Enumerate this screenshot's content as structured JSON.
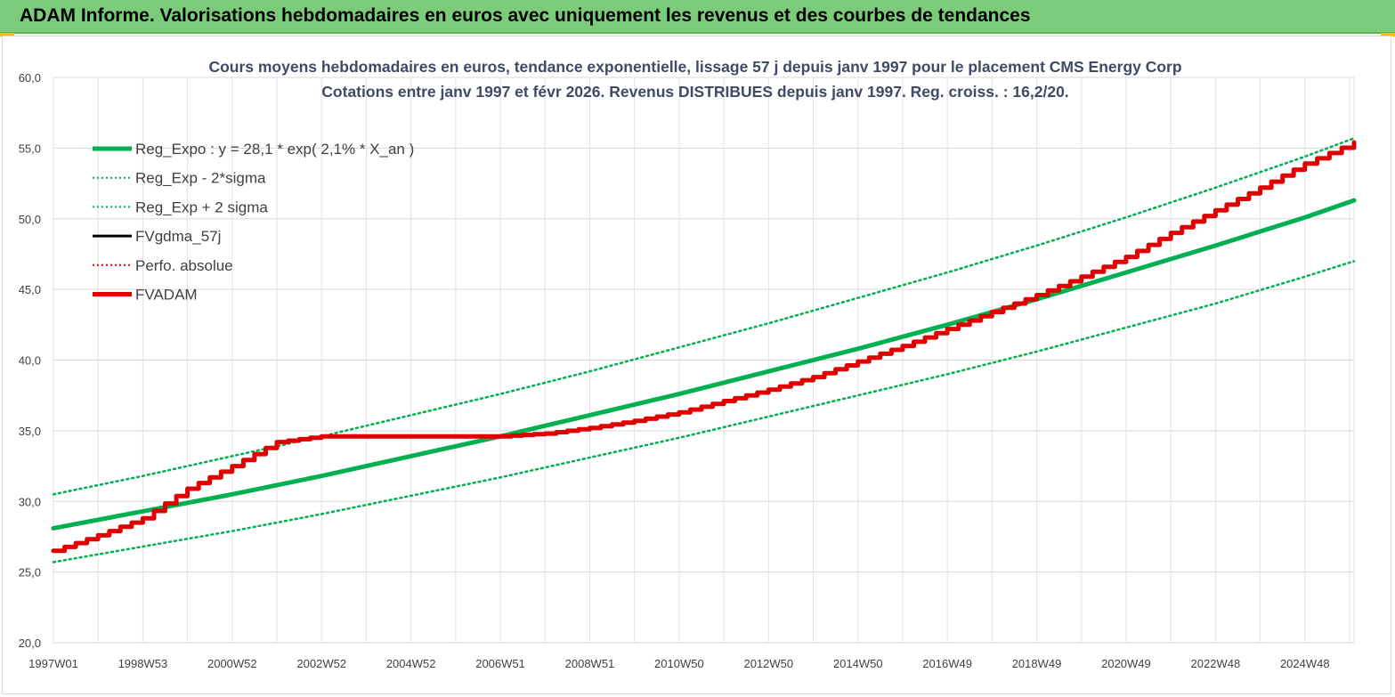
{
  "banner": {
    "title": "ADAM Informe. Valorisations hebdomadaires en euros avec uniquement les revenus et des courbes de tendances"
  },
  "chart_data": {
    "type": "line",
    "title": "Cours moyens hebdomadaires en euros, tendance exponentielle, lissage 57 j depuis janv 1997 pour le placement CMS Energy Corp",
    "subtitle": "Cotations entre janv 1997 et févr 2026. Revenus DISTRIBUES depuis janv 1997. Reg. croiss. : 16,2/20.",
    "xlabel": "",
    "ylabel": "",
    "x_tick_labels": [
      "1997W01",
      "1998W53",
      "2000W52",
      "2002W52",
      "2004W52",
      "2006W51",
      "2008W51",
      "2010W50",
      "2012W50",
      "2014W50",
      "2016W49",
      "2018W49",
      "2020W49",
      "2022W48",
      "2024W48"
    ],
    "y_ticks": [
      20,
      25,
      30,
      35,
      40,
      45,
      50,
      55,
      60
    ],
    "y_tick_labels": [
      "20,0",
      "25,0",
      "30,0",
      "35,0",
      "40,0",
      "45,0",
      "50,0",
      "55,0",
      "60,0"
    ],
    "ylim": [
      20,
      60
    ],
    "xlim": [
      1997.0,
      2026.1
    ],
    "grid": true,
    "legend_position": "top-left",
    "series": [
      {
        "name": "Reg_Expo : y = 28,1 * exp( 2,1% *  X_an )",
        "color": "#00b050",
        "style": "solid-thick",
        "x": [
          1997,
          1999,
          2001,
          2003,
          2005,
          2007,
          2009,
          2011,
          2013,
          2015,
          2017,
          2019,
          2021,
          2023,
          2025,
          2026.1
        ],
        "y": [
          28.1,
          29.3,
          30.5,
          31.8,
          33.2,
          34.6,
          36.1,
          37.6,
          39.2,
          40.8,
          42.5,
          44.3,
          46.2,
          48.1,
          50.1,
          51.3
        ]
      },
      {
        "name": "Reg_Exp - 2*sigma",
        "color": "#00b050",
        "style": "dotted",
        "x": [
          1997,
          1999,
          2001,
          2003,
          2005,
          2007,
          2009,
          2011,
          2013,
          2015,
          2017,
          2019,
          2021,
          2023,
          2025,
          2026.1
        ],
        "y": [
          25.7,
          26.8,
          27.9,
          29.1,
          30.4,
          31.7,
          33.1,
          34.5,
          36.0,
          37.5,
          39.0,
          40.6,
          42.3,
          44.0,
          45.9,
          47.0
        ]
      },
      {
        "name": "Reg_Exp + 2 sigma",
        "color": "#00b050",
        "style": "dotted",
        "x": [
          1997,
          1999,
          2001,
          2003,
          2005,
          2007,
          2009,
          2011,
          2013,
          2015,
          2017,
          2019,
          2021,
          2023,
          2025,
          2026.1
        ],
        "y": [
          30.5,
          31.8,
          33.2,
          34.6,
          36.1,
          37.6,
          39.2,
          40.9,
          42.6,
          44.4,
          46.2,
          48.1,
          50.1,
          52.2,
          54.4,
          55.7
        ]
      },
      {
        "name": "FVgdma_57j",
        "color": "#000000",
        "style": "solid",
        "x": [],
        "y": []
      },
      {
        "name": "Perfo. absolue",
        "color": "#e00000",
        "style": "dotted",
        "x": [],
        "y": []
      },
      {
        "name": "FVADAM",
        "color": "#e00000",
        "style": "solid-thick",
        "x": [
          1997.0,
          1998.0,
          1999.0,
          2000.0,
          2001.0,
          2002.0,
          2003.0,
          2004.0,
          2005.0,
          2006.0,
          2007.0,
          2008.0,
          2009.0,
          2010.0,
          2011.0,
          2012.0,
          2013.0,
          2014.0,
          2015.0,
          2016.0,
          2017.0,
          2018.0,
          2019.0,
          2020.0,
          2021.0,
          2022.0,
          2023.0,
          2024.0,
          2025.0,
          2026.1
        ],
        "y": [
          26.5,
          27.6,
          28.8,
          30.9,
          32.5,
          34.2,
          34.6,
          34.6,
          34.6,
          34.6,
          34.6,
          34.8,
          35.2,
          35.7,
          36.3,
          37.1,
          37.9,
          38.8,
          39.9,
          41.0,
          42.2,
          43.4,
          44.6,
          45.9,
          47.3,
          49.0,
          50.6,
          52.2,
          53.9,
          55.4
        ]
      }
    ]
  }
}
